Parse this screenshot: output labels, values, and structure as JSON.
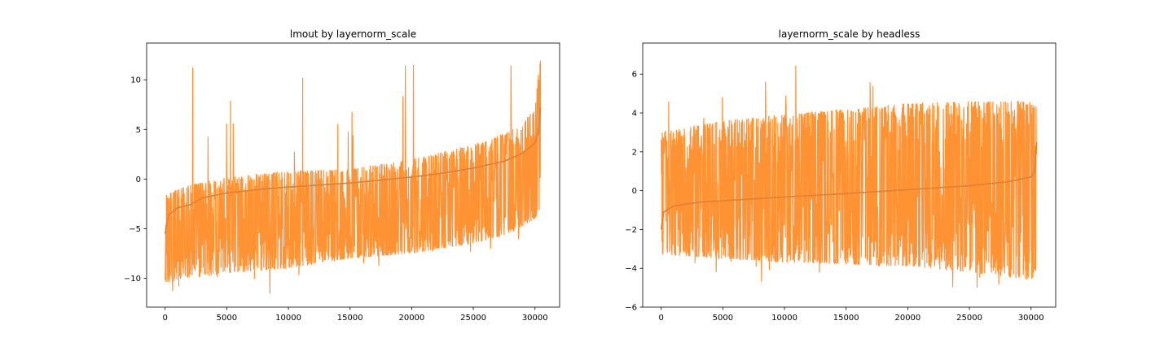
{
  "chart_data": [
    {
      "type": "line",
      "title": "lmout by layernorm_scale",
      "xlabel": "",
      "ylabel": "",
      "xlim": [
        -1500,
        32000
      ],
      "ylim": [
        -12.9,
        13.7
      ],
      "xticks": [
        0,
        5000,
        10000,
        15000,
        20000,
        25000,
        30000
      ],
      "xtick_labels": [
        "0",
        "5000",
        "10000",
        "15000",
        "20000",
        "25000",
        "30000"
      ],
      "yticks": [
        -10,
        -5,
        0,
        5,
        10
      ],
      "ytick_labels": [
        "−10",
        "−5",
        "0",
        "5",
        "10"
      ],
      "grid": false,
      "colors": {
        "trend": "#1f77b4",
        "noise": "#ff7f0e"
      },
      "series": [
        {
          "x": [
            0,
            300,
            1000,
            2000,
            3000,
            5000,
            8000,
            10000,
            15000,
            20000,
            22500,
            25000,
            27500,
            29000,
            30000,
            30300,
            30450
          ],
          "values": [
            -5.5,
            -3.6,
            -2.9,
            -2.6,
            -1.9,
            -1.4,
            -1.0,
            -0.8,
            -0.4,
            0.2,
            0.6,
            1.1,
            1.8,
            2.6,
            3.6,
            4.8,
            7.2
          ]
        },
        {
          "x": [
            0,
            2000,
            5000,
            10000,
            15000,
            20000,
            25000,
            28000,
            30000,
            30450
          ],
          "upper": [
            -1.5,
            -0.6,
            0.2,
            0.8,
            1.0,
            2.0,
            3.5,
            4.8,
            7.0,
            12.8
          ],
          "lower": [
            -10.5,
            -10.0,
            -9.5,
            -9.0,
            -8.0,
            -7.5,
            -6.5,
            -5.5,
            -4.0,
            -3.0
          ],
          "min": -11.9,
          "max": 12.8
        }
      ]
    },
    {
      "type": "line",
      "title": "layernorm_scale by headless",
      "xlabel": "",
      "ylabel": "",
      "xlim": [
        -1500,
        32000
      ],
      "ylim": [
        -6.0,
        7.6
      ],
      "xticks": [
        0,
        5000,
        10000,
        15000,
        20000,
        25000,
        30000
      ],
      "xtick_labels": [
        "0",
        "5000",
        "10000",
        "15000",
        "20000",
        "25000",
        "30000"
      ],
      "yticks": [
        -6,
        -4,
        -2,
        0,
        2,
        4,
        6
      ],
      "ytick_labels": [
        "−6",
        "−4",
        "−2",
        "0",
        "2",
        "4",
        "6"
      ],
      "grid": false,
      "colors": {
        "trend": "#1f77b4",
        "noise": "#ff7f0e"
      },
      "series": [
        {
          "x": [
            0,
            200,
            1000,
            3000,
            8000,
            15000,
            20000,
            25000,
            28000,
            30000,
            30300,
            30450
          ],
          "values": [
            -2.0,
            -1.1,
            -0.8,
            -0.6,
            -0.4,
            -0.15,
            0.05,
            0.25,
            0.45,
            0.7,
            1.0,
            2.5
          ]
        },
        {
          "x": [
            0,
            5000,
            10000,
            15000,
            20000,
            25000,
            30000,
            30450
          ],
          "upper": [
            3.0,
            3.6,
            3.9,
            4.2,
            4.5,
            4.6,
            4.6,
            4.3
          ],
          "lower": [
            -3.3,
            -3.5,
            -3.7,
            -3.8,
            -3.9,
            -4.2,
            -4.6,
            -4.2
          ],
          "min": -5.4,
          "max": 7.1
        }
      ]
    }
  ]
}
